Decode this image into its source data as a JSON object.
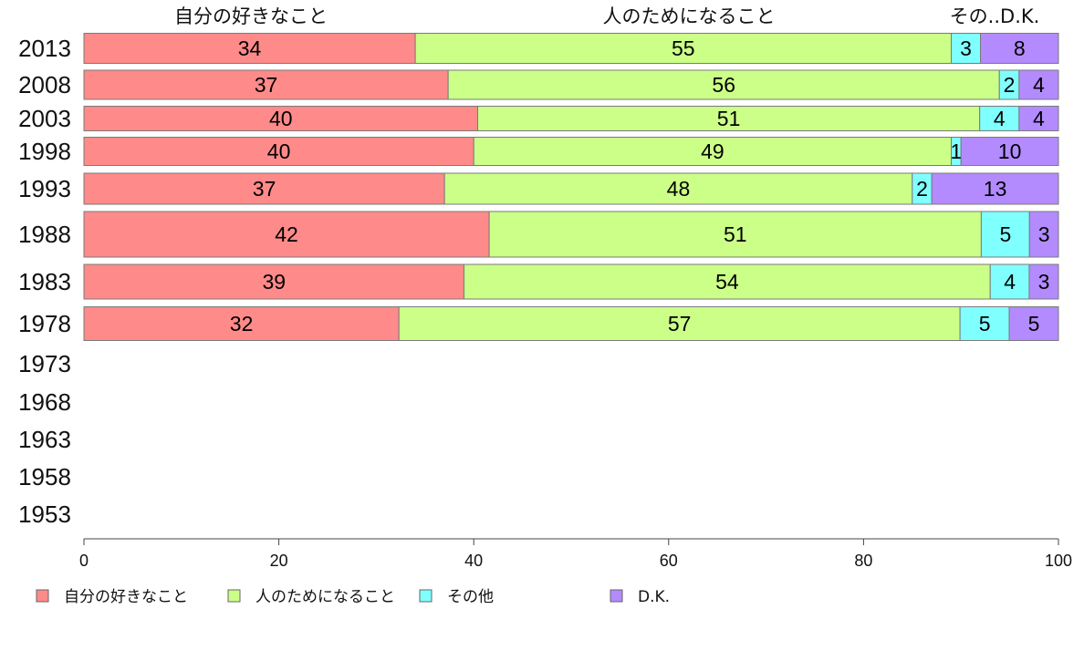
{
  "chart_data": {
    "type": "bar",
    "orientation": "horizontal",
    "stacked": true,
    "title": "",
    "xlabel": "",
    "ylabel": "",
    "xlim": [
      0,
      100
    ],
    "x_ticks": [
      "0",
      "20",
      "40",
      "60",
      "80",
      "100"
    ],
    "categories": [
      "2013",
      "2008",
      "2003",
      "1998",
      "1993",
      "1988",
      "1983",
      "1978",
      "1973",
      "1968",
      "1963",
      "1958",
      "1953"
    ],
    "column_headers": [
      "自分の好きなこと",
      "人のためになること",
      "その..D.K."
    ],
    "series": [
      {
        "name": "自分の好きなこと",
        "color": "#ff8a8a",
        "values": [
          34,
          37,
          40,
          40,
          37,
          42,
          39,
          32,
          null,
          null,
          null,
          null,
          null
        ]
      },
      {
        "name": "人のためになること",
        "color": "#ccff88",
        "values": [
          55,
          56,
          51,
          49,
          48,
          51,
          54,
          57,
          null,
          null,
          null,
          null,
          null
        ]
      },
      {
        "name": "その他",
        "color": "#80ffff",
        "values": [
          3,
          2,
          4,
          1,
          2,
          5,
          4,
          5,
          null,
          null,
          null,
          null,
          null
        ]
      },
      {
        "name": "D.K.",
        "color": "#b38bff",
        "values": [
          8,
          4,
          4,
          10,
          13,
          3,
          3,
          5,
          null,
          null,
          null,
          null,
          null
        ]
      }
    ],
    "legend_position": "bottom-left",
    "grid": false
  }
}
